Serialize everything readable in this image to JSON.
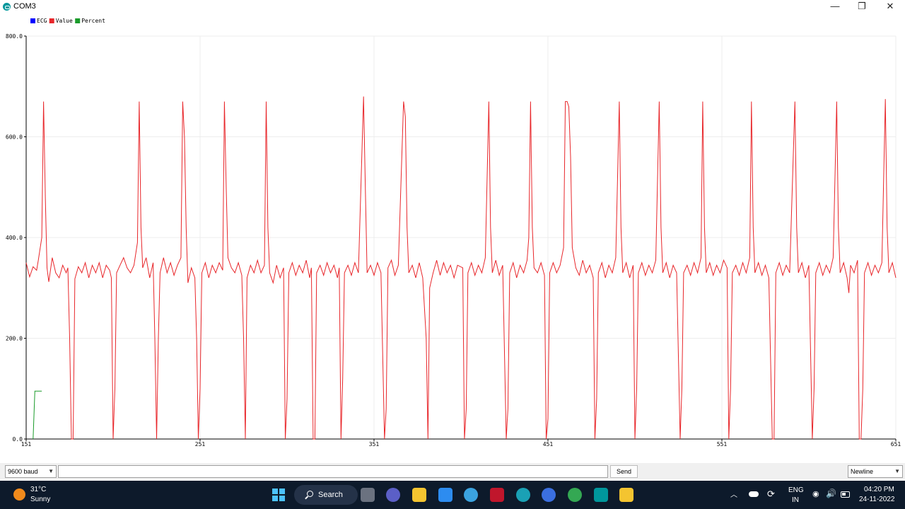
{
  "window": {
    "title": "COM3",
    "controls": {
      "minimize": "—",
      "maximize": "❐",
      "close": "✕"
    }
  },
  "chart_data": {
    "type": "line",
    "legend": [
      "ECG",
      "Value",
      "Percent"
    ],
    "legend_placement": "top-left",
    "x_ticks": [
      "151",
      "251",
      "351",
      "451",
      "551",
      "651"
    ],
    "y_ticks": [
      "0.0",
      "200.0",
      "400.0",
      "600.0",
      "800.0"
    ],
    "xlim": [
      151,
      651
    ],
    "ylim": [
      0,
      800
    ],
    "grid": true,
    "colors": {
      "ECG": "#0000ff",
      "Value": "#e8262a",
      "Percent": "#1a9b2a"
    },
    "series": [
      {
        "name": "Value",
        "points": [
          [
            151,
            350
          ],
          [
            153,
            322
          ],
          [
            155,
            342
          ],
          [
            157,
            335
          ],
          [
            158,
            355
          ],
          [
            160,
            400
          ],
          [
            161,
            670
          ],
          [
            162,
            480
          ],
          [
            163,
            340
          ],
          [
            164,
            312
          ],
          [
            166,
            360
          ],
          [
            168,
            330
          ],
          [
            170,
            320
          ],
          [
            172,
            345
          ],
          [
            174,
            330
          ],
          [
            175,
            340
          ],
          [
            176,
            200
          ],
          [
            177,
            0
          ],
          [
            178,
            0
          ],
          [
            179,
            318
          ],
          [
            181,
            342
          ],
          [
            183,
            330
          ],
          [
            185,
            350
          ],
          [
            187,
            320
          ],
          [
            189,
            345
          ],
          [
            191,
            330
          ],
          [
            193,
            350
          ],
          [
            195,
            320
          ],
          [
            197,
            345
          ],
          [
            199,
            335
          ],
          [
            200,
            320
          ],
          [
            201,
            0
          ],
          [
            202,
            100
          ],
          [
            203,
            330
          ],
          [
            205,
            345
          ],
          [
            207,
            360
          ],
          [
            209,
            340
          ],
          [
            211,
            330
          ],
          [
            213,
            345
          ],
          [
            215,
            390
          ],
          [
            216,
            670
          ],
          [
            217,
            420
          ],
          [
            218,
            340
          ],
          [
            220,
            360
          ],
          [
            222,
            320
          ],
          [
            224,
            350
          ],
          [
            225,
            200
          ],
          [
            226,
            0
          ],
          [
            227,
            200
          ],
          [
            228,
            330
          ],
          [
            230,
            360
          ],
          [
            232,
            330
          ],
          [
            234,
            350
          ],
          [
            236,
            325
          ],
          [
            238,
            345
          ],
          [
            240,
            360
          ],
          [
            241,
            670
          ],
          [
            242,
            600
          ],
          [
            243,
            420
          ],
          [
            244,
            310
          ],
          [
            246,
            340
          ],
          [
            248,
            320
          ],
          [
            249,
            200
          ],
          [
            250,
            0
          ],
          [
            251,
            100
          ],
          [
            252,
            330
          ],
          [
            254,
            350
          ],
          [
            256,
            320
          ],
          [
            258,
            345
          ],
          [
            260,
            330
          ],
          [
            262,
            350
          ],
          [
            264,
            335
          ],
          [
            265,
            670
          ],
          [
            266,
            500
          ],
          [
            267,
            360
          ],
          [
            269,
            340
          ],
          [
            271,
            330
          ],
          [
            273,
            350
          ],
          [
            275,
            325
          ],
          [
            276,
            200
          ],
          [
            277,
            0
          ],
          [
            278,
            320
          ],
          [
            280,
            345
          ],
          [
            282,
            330
          ],
          [
            284,
            355
          ],
          [
            286,
            330
          ],
          [
            288,
            345
          ],
          [
            289,
            670
          ],
          [
            290,
            420
          ],
          [
            291,
            330
          ],
          [
            293,
            310
          ],
          [
            295,
            345
          ],
          [
            297,
            320
          ],
          [
            299,
            340
          ],
          [
            300,
            0
          ],
          [
            301,
            80
          ],
          [
            302,
            330
          ],
          [
            304,
            350
          ],
          [
            306,
            325
          ],
          [
            308,
            345
          ],
          [
            310,
            330
          ],
          [
            312,
            355
          ],
          [
            314,
            320
          ],
          [
            315,
            340
          ],
          [
            316,
            0
          ],
          [
            317,
            0
          ],
          [
            318,
            330
          ],
          [
            320,
            345
          ],
          [
            322,
            325
          ],
          [
            324,
            350
          ],
          [
            326,
            330
          ],
          [
            328,
            345
          ],
          [
            330,
            320
          ],
          [
            331,
            340
          ],
          [
            332,
            0
          ],
          [
            333,
            120
          ],
          [
            334,
            330
          ],
          [
            336,
            345
          ],
          [
            338,
            325
          ],
          [
            340,
            350
          ],
          [
            342,
            330
          ],
          [
            345,
            680
          ],
          [
            346,
            500
          ],
          [
            347,
            330
          ],
          [
            349,
            345
          ],
          [
            351,
            325
          ],
          [
            353,
            350
          ],
          [
            355,
            330
          ],
          [
            357,
            0
          ],
          [
            358,
            60
          ],
          [
            359,
            340
          ],
          [
            361,
            355
          ],
          [
            363,
            325
          ],
          [
            365,
            345
          ],
          [
            368,
            670
          ],
          [
            369,
            640
          ],
          [
            370,
            420
          ],
          [
            371,
            330
          ],
          [
            373,
            345
          ],
          [
            375,
            320
          ],
          [
            377,
            350
          ],
          [
            379,
            320
          ],
          [
            381,
            200
          ],
          [
            382,
            0
          ],
          [
            383,
            300
          ],
          [
            385,
            330
          ],
          [
            387,
            355
          ],
          [
            389,
            325
          ],
          [
            391,
            350
          ],
          [
            393,
            330
          ],
          [
            395,
            345
          ],
          [
            397,
            320
          ],
          [
            399,
            345
          ],
          [
            402,
            340
          ],
          [
            403,
            0
          ],
          [
            404,
            60
          ],
          [
            405,
            330
          ],
          [
            407,
            350
          ],
          [
            409,
            325
          ],
          [
            411,
            345
          ],
          [
            413,
            330
          ],
          [
            415,
            360
          ],
          [
            417,
            670
          ],
          [
            418,
            420
          ],
          [
            419,
            330
          ],
          [
            421,
            355
          ],
          [
            423,
            325
          ],
          [
            425,
            345
          ],
          [
            427,
            0
          ],
          [
            428,
            60
          ],
          [
            429,
            330
          ],
          [
            431,
            350
          ],
          [
            433,
            320
          ],
          [
            435,
            345
          ],
          [
            437,
            330
          ],
          [
            439,
            355
          ],
          [
            440,
            400
          ],
          [
            441,
            670
          ],
          [
            442,
            420
          ],
          [
            443,
            340
          ],
          [
            445,
            330
          ],
          [
            447,
            350
          ],
          [
            449,
            325
          ],
          [
            450,
            0
          ],
          [
            451,
            40
          ],
          [
            452,
            330
          ],
          [
            454,
            350
          ],
          [
            456,
            330
          ],
          [
            458,
            345
          ],
          [
            460,
            380
          ],
          [
            461,
            670
          ],
          [
            462,
            670
          ],
          [
            463,
            660
          ],
          [
            464,
            560
          ],
          [
            465,
            380
          ],
          [
            467,
            340
          ],
          [
            469,
            325
          ],
          [
            471,
            355
          ],
          [
            473,
            330
          ],
          [
            475,
            345
          ],
          [
            477,
            320
          ],
          [
            478,
            0
          ],
          [
            479,
            80
          ],
          [
            480,
            330
          ],
          [
            482,
            350
          ],
          [
            484,
            320
          ],
          [
            486,
            345
          ],
          [
            488,
            330
          ],
          [
            490,
            360
          ],
          [
            492,
            670
          ],
          [
            493,
            420
          ],
          [
            494,
            330
          ],
          [
            496,
            350
          ],
          [
            498,
            320
          ],
          [
            500,
            345
          ],
          [
            501,
            0
          ],
          [
            502,
            100
          ],
          [
            503,
            330
          ],
          [
            505,
            350
          ],
          [
            507,
            325
          ],
          [
            509,
            345
          ],
          [
            511,
            330
          ],
          [
            513,
            355
          ],
          [
            515,
            670
          ],
          [
            516,
            420
          ],
          [
            517,
            330
          ],
          [
            519,
            350
          ],
          [
            521,
            320
          ],
          [
            523,
            345
          ],
          [
            525,
            330
          ],
          [
            527,
            0
          ],
          [
            528,
            100
          ],
          [
            529,
            330
          ],
          [
            531,
            345
          ],
          [
            533,
            325
          ],
          [
            535,
            350
          ],
          [
            537,
            330
          ],
          [
            539,
            360
          ],
          [
            540,
            670
          ],
          [
            541,
            420
          ],
          [
            542,
            330
          ],
          [
            544,
            350
          ],
          [
            546,
            325
          ],
          [
            548,
            345
          ],
          [
            550,
            330
          ],
          [
            552,
            355
          ],
          [
            554,
            340
          ],
          [
            555,
            0
          ],
          [
            556,
            100
          ],
          [
            557,
            330
          ],
          [
            559,
            345
          ],
          [
            561,
            325
          ],
          [
            563,
            350
          ],
          [
            565,
            330
          ],
          [
            567,
            360
          ],
          [
            568,
            670
          ],
          [
            569,
            420
          ],
          [
            570,
            330
          ],
          [
            572,
            350
          ],
          [
            574,
            325
          ],
          [
            576,
            345
          ],
          [
            578,
            320
          ],
          [
            580,
            0
          ],
          [
            581,
            0
          ],
          [
            582,
            330
          ],
          [
            584,
            350
          ],
          [
            586,
            325
          ],
          [
            588,
            345
          ],
          [
            590,
            330
          ],
          [
            593,
            670
          ],
          [
            594,
            420
          ],
          [
            595,
            330
          ],
          [
            597,
            350
          ],
          [
            599,
            320
          ],
          [
            601,
            345
          ],
          [
            603,
            0
          ],
          [
            604,
            100
          ],
          [
            605,
            330
          ],
          [
            607,
            350
          ],
          [
            609,
            325
          ],
          [
            611,
            345
          ],
          [
            613,
            330
          ],
          [
            615,
            360
          ],
          [
            617,
            670
          ],
          [
            618,
            420
          ],
          [
            619,
            330
          ],
          [
            621,
            350
          ],
          [
            623,
            320
          ],
          [
            624,
            290
          ],
          [
            625,
            345
          ],
          [
            627,
            330
          ],
          [
            629,
            355
          ],
          [
            630,
            0
          ],
          [
            631,
            0
          ],
          [
            632,
            100
          ],
          [
            633,
            330
          ],
          [
            635,
            350
          ],
          [
            637,
            325
          ],
          [
            639,
            345
          ],
          [
            641,
            330
          ],
          [
            643,
            350
          ],
          [
            645,
            675
          ],
          [
            646,
            420
          ],
          [
            647,
            330
          ],
          [
            649,
            350
          ],
          [
            651,
            320
          ]
        ]
      },
      {
        "name": "Percent",
        "points": [
          [
            155,
            0
          ],
          [
            156,
            95
          ],
          [
            160,
            95
          ]
        ]
      }
    ]
  },
  "serial": {
    "baud_rate": "9600 baud",
    "input_value": "",
    "send_label": "Send",
    "line_ending": "Newline"
  },
  "taskbar": {
    "weather_temp": "31°C",
    "weather_condition": "Sunny",
    "search_label": "Search",
    "lang_line1": "ENG",
    "lang_line2": "IN",
    "time": "04:20 PM",
    "date": "24-11-2022"
  }
}
